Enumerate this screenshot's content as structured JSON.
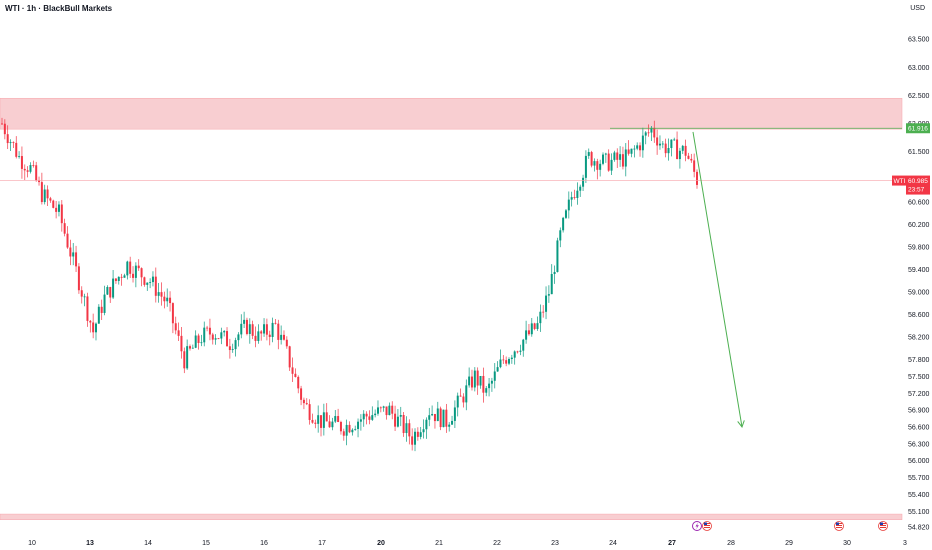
{
  "header": {
    "title": "WTI · 1h · BlackBull Markets",
    "currency": "USD"
  },
  "colors": {
    "up": "#089981",
    "down": "#f23645",
    "zone": "#f7c6c9",
    "zone_border": "#f7a5ab",
    "resistance_line": "#4caf50",
    "arrow": "#4caf50",
    "current_price_line": "#f7a5ab"
  },
  "price_axis": {
    "labels": [
      "63.500",
      "63.000",
      "62.500",
      "62.000",
      "61.500",
      "60.600",
      "60.200",
      "59.800",
      "59.400",
      "59.000",
      "58.600",
      "58.200",
      "57.800",
      "57.500",
      "57.200",
      "56.900",
      "56.600",
      "56.300",
      "56.000",
      "55.700",
      "55.400",
      "55.100",
      "54.820"
    ]
  },
  "time_axis": {
    "labels": [
      {
        "text": "10",
        "bold": false
      },
      {
        "text": "13",
        "bold": true
      },
      {
        "text": "14",
        "bold": false
      },
      {
        "text": "15",
        "bold": false
      },
      {
        "text": "16",
        "bold": false
      },
      {
        "text": "17",
        "bold": false
      },
      {
        "text": "20",
        "bold": true
      },
      {
        "text": "21",
        "bold": false
      },
      {
        "text": "22",
        "bold": false
      },
      {
        "text": "23",
        "bold": false
      },
      {
        "text": "24",
        "bold": false
      },
      {
        "text": "27",
        "bold": true
      },
      {
        "text": "28",
        "bold": false
      },
      {
        "text": "29",
        "bold": false
      },
      {
        "text": "30",
        "bold": false
      },
      {
        "text": "3",
        "bold": false
      }
    ]
  },
  "price_tags": {
    "resistance": {
      "value": "61.916"
    },
    "current": {
      "symbol": "WTI",
      "value": "60.985",
      "countdown": "23:57"
    }
  },
  "events": [
    {
      "icon": "lightning-event-icon"
    },
    {
      "icon": "us-flag-event-icon"
    },
    {
      "icon": "us-flag-event-icon"
    },
    {
      "icon": "us-flag-event-icon"
    }
  ],
  "chart_data": {
    "type": "candlestick",
    "title": "WTI · 1h · BlackBull Markets",
    "ylim": [
      54.82,
      63.7
    ],
    "resistance_zone": [
      61.9,
      62.45
    ],
    "support_zone": [
      54.95,
      55.05
    ],
    "resistance_level": 61.916,
    "current_price": 60.985,
    "projection": {
      "from_price": 61.85,
      "to_price": 56.6
    },
    "anchors": [
      [
        0,
        62.0
      ],
      [
        6,
        61.4
      ],
      [
        10,
        61.2
      ],
      [
        14,
        60.75
      ],
      [
        20,
        60.4
      ],
      [
        27,
        59.2
      ],
      [
        32,
        58.3
      ],
      [
        36,
        58.9
      ],
      [
        44,
        59.5
      ],
      [
        52,
        59.2
      ],
      [
        58,
        58.8
      ],
      [
        64,
        57.8
      ],
      [
        70,
        58.2
      ],
      [
        74,
        58.3
      ],
      [
        80,
        58.1
      ],
      [
        86,
        58.4
      ],
      [
        90,
        58.2
      ],
      [
        96,
        58.4
      ],
      [
        100,
        57.9
      ],
      [
        106,
        57.0
      ],
      [
        112,
        56.7
      ],
      [
        120,
        56.6
      ],
      [
        128,
        56.8
      ],
      [
        136,
        56.9
      ],
      [
        144,
        56.4
      ],
      [
        150,
        56.9
      ],
      [
        156,
        56.7
      ],
      [
        160,
        57.0
      ],
      [
        166,
        57.5
      ],
      [
        170,
        57.2
      ],
      [
        176,
        57.8
      ],
      [
        182,
        58.1
      ],
      [
        188,
        58.4
      ],
      [
        192,
        59.0
      ],
      [
        196,
        60.0
      ],
      [
        200,
        60.7
      ],
      [
        206,
        61.4
      ],
      [
        212,
        61.3
      ],
      [
        220,
        61.4
      ],
      [
        228,
        61.9
      ],
      [
        232,
        61.6
      ],
      [
        240,
        61.5
      ],
      [
        244,
        61.0
      ]
    ],
    "num_candles": 245
  }
}
